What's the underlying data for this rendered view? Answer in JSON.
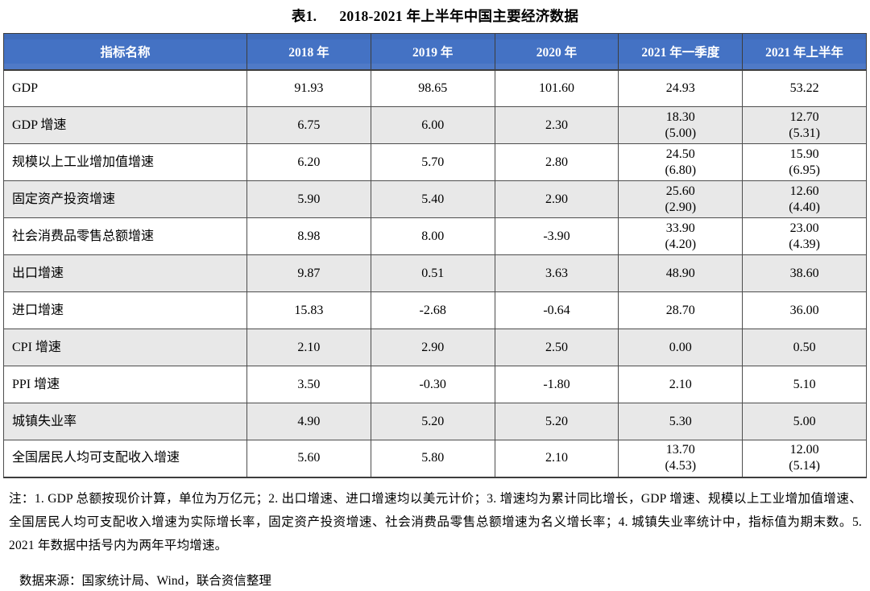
{
  "title": {
    "prefix": "表1.",
    "text": "2018-2021 年上半年中国主要经济数据"
  },
  "table": {
    "columns": [
      "指标名称",
      "2018 年",
      "2019 年",
      "2020 年",
      "2021 年一季度",
      "2021 年上半年"
    ],
    "rows": [
      {
        "label": "GDP",
        "values": [
          "91.93",
          "98.65",
          "101.60",
          "24.93",
          "53.22"
        ]
      },
      {
        "label": "GDP 增速",
        "values": [
          "6.75",
          "6.00",
          "2.30",
          "18.30\n(5.00)",
          "12.70\n(5.31)"
        ]
      },
      {
        "label": "规模以上工业增加值增速",
        "values": [
          "6.20",
          "5.70",
          "2.80",
          "24.50\n(6.80)",
          "15.90\n(6.95)"
        ]
      },
      {
        "label": "固定资产投资增速",
        "values": [
          "5.90",
          "5.40",
          "2.90",
          "25.60\n(2.90)",
          "12.60\n(4.40)"
        ]
      },
      {
        "label": "社会消费品零售总额增速",
        "values": [
          "8.98",
          "8.00",
          "-3.90",
          "33.90\n(4.20)",
          "23.00\n(4.39)"
        ]
      },
      {
        "label": "出口增速",
        "values": [
          "9.87",
          "0.51",
          "3.63",
          "48.90",
          "38.60"
        ]
      },
      {
        "label": "进口增速",
        "values": [
          "15.83",
          "-2.68",
          "-0.64",
          "28.70",
          "36.00"
        ]
      },
      {
        "label": "CPI 增速",
        "values": [
          "2.10",
          "2.90",
          "2.50",
          "0.00",
          "0.50"
        ]
      },
      {
        "label": "PPI 增速",
        "values": [
          "3.50",
          "-0.30",
          "-1.80",
          "2.10",
          "5.10"
        ]
      },
      {
        "label": "城镇失业率",
        "values": [
          "4.90",
          "5.20",
          "5.20",
          "5.30",
          "5.00"
        ]
      },
      {
        "label": "全国居民人均可支配收入增速",
        "values": [
          "5.60",
          "5.80",
          "2.10",
          "13.70\n(4.53)",
          "12.00\n(5.14)"
        ]
      }
    ]
  },
  "notes": "注：1. GDP 总额按现价计算，单位为万亿元；2. 出口增速、进口增速均以美元计价；3. 增速均为累计同比增长，GDP 增速、规模以上工业增加值增速、全国居民人均可支配收入增速为实际增长率，固定资产投资增速、社会消费品零售总额增速为名义增长率；4. 城镇失业率统计中，指标值为期末数。5. 2021 年数据中括号内为两年平均增速。",
  "source": "数据来源：国家统计局、Wind，联合资信整理",
  "colors": {
    "header_bg": "#4472C4",
    "header_text": "#FFFFFF",
    "stripe": "#E8E8E8",
    "border": "#4D4D4D"
  }
}
